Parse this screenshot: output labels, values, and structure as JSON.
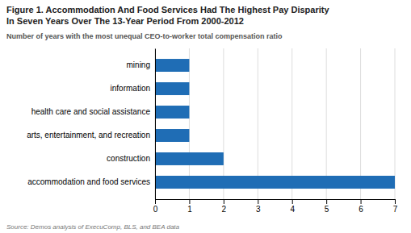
{
  "chart_data": {
    "type": "bar",
    "orientation": "horizontal",
    "title": [
      "Figure 1. Accommodation And Food Services Had The Highest Pay Disparity",
      "In Seven Years Over The 13-Year Period From 2000-2012"
    ],
    "subtitle": "Number of years with the most unequal CEO-to-worker total compensation ratio",
    "source": "Source: Demos analysis of ExecuComp, BLS, and BEA data",
    "categories": [
      "accommodation and food services",
      "construction",
      "arts, entertainment, and recreation",
      "health care and social assistance",
      "information",
      "mining"
    ],
    "values": [
      7,
      2,
      1,
      1,
      1,
      1
    ],
    "color": "#1f6db5",
    "xlim": [
      0,
      7
    ],
    "xticks": [
      0,
      1,
      2,
      3,
      4,
      5,
      6,
      7
    ],
    "grid": true
  }
}
